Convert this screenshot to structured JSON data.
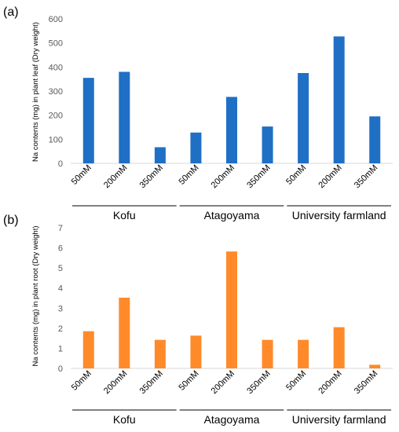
{
  "chart_data": [
    {
      "type": "bar",
      "panel_label": "(a)",
      "ylabel": "Na contents (mg) in plant leaf (Dry weight)",
      "xlabel": "",
      "ylim": [
        0,
        600
      ],
      "yticks": [
        0,
        100,
        200,
        300,
        400,
        500,
        600
      ],
      "grid": false,
      "color": "#1F6FC5",
      "categories": [
        "50mM",
        "200mM",
        "350mM",
        "50mM",
        "200mM",
        "350mM",
        "50mM",
        "200mM",
        "350mM"
      ],
      "groups": [
        "Kofu",
        "Atagoyama",
        "University farmland"
      ],
      "values": [
        355,
        380,
        67,
        128,
        276,
        153,
        375,
        527,
        195
      ]
    },
    {
      "type": "bar",
      "panel_label": "(b)",
      "ylabel": "Na contents (mg) in plant root (Dry weight)",
      "xlabel": "",
      "ylim": [
        0,
        7
      ],
      "yticks": [
        0,
        1,
        2,
        3,
        4,
        5,
        6,
        7
      ],
      "grid": false,
      "color": "#FF8A2A",
      "categories": [
        "50mM",
        "200mM",
        "350mM",
        "50mM",
        "200mM",
        "350mM",
        "50mM",
        "200mM",
        "350mM"
      ],
      "groups": [
        "Kofu",
        "Atagoyama",
        "University farmland"
      ],
      "values": [
        1.85,
        3.52,
        1.42,
        1.63,
        5.82,
        1.42,
        1.42,
        2.05,
        0.18
      ]
    }
  ]
}
